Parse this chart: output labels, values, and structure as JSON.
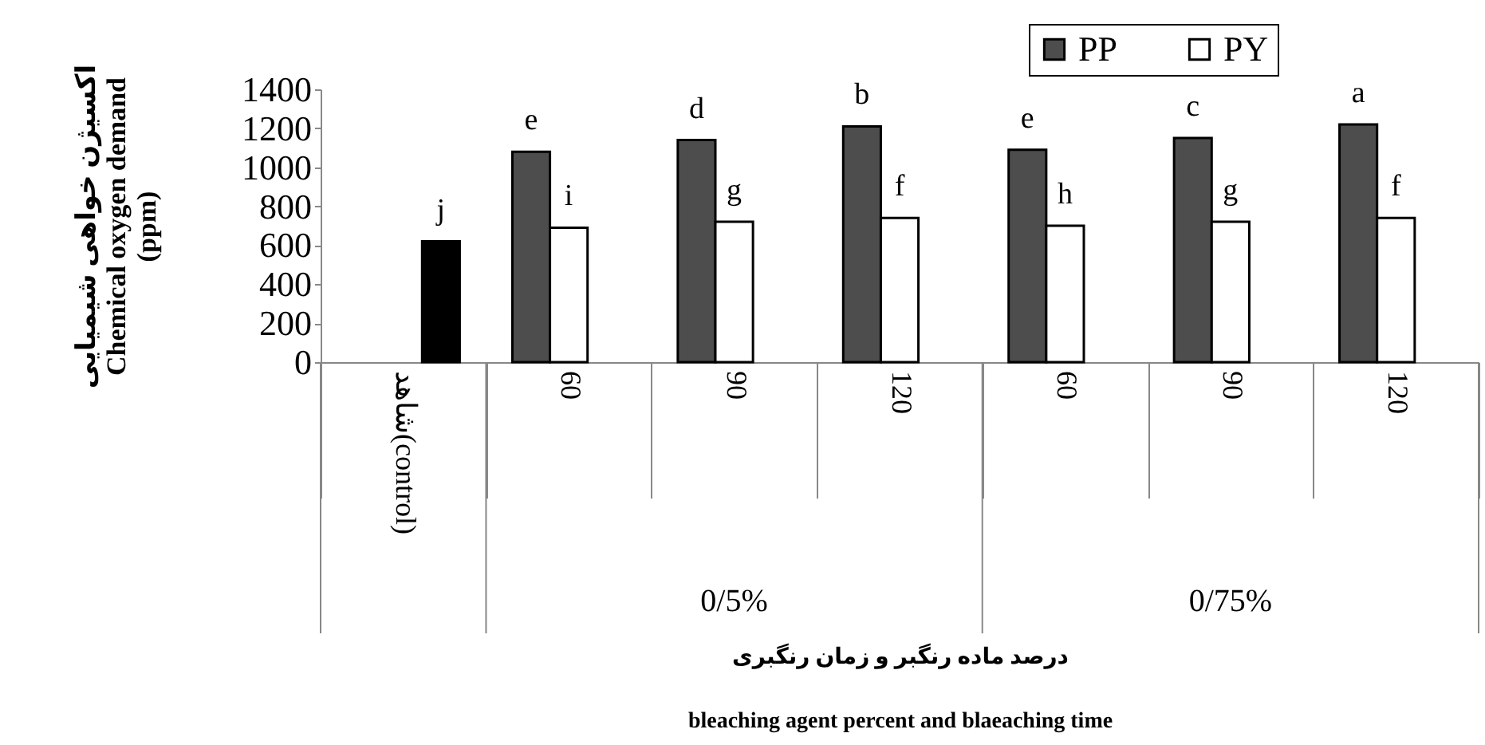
{
  "chart_data": {
    "type": "bar",
    "categories": [
      "شاهد(control)",
      "60",
      "90",
      "120",
      "60",
      "90",
      "120"
    ],
    "series": [
      {
        "name": "PP",
        "color": "#4d4d4d",
        "values": [
          null,
          1080,
          1140,
          1210,
          1090,
          1150,
          1220
        ],
        "value_labels": [
          null,
          "e",
          "d",
          "b",
          "e",
          "c",
          "a"
        ]
      },
      {
        "name": "PY",
        "color": "#ffffff",
        "values": [
          null,
          690,
          720,
          740,
          700,
          720,
          740
        ],
        "value_labels": [
          null,
          "i",
          "g",
          "f",
          "h",
          "g",
          "f"
        ]
      },
      {
        "color": "#000000",
        "values": [
          620,
          null,
          null,
          null,
          null,
          null,
          null
        ],
        "value_labels": [
          "j",
          null,
          null,
          null,
          null,
          null,
          null
        ]
      }
    ],
    "ylim": [
      0,
      1400
    ],
    "yticks": [
      0,
      200,
      400,
      600,
      800,
      1000,
      1200,
      1400
    ],
    "ylabel": "اکسیژن خواهی شیمیایی\nChemical oxygen demand\n(ppm)",
    "xlabel": "درصد ماده رنگبر و زمان رنگبری\nbleaching agent percent and blaeaching time",
    "annotations": [
      "0/5%",
      "0/75%"
    ],
    "legend": "top right",
    "grid": false
  }
}
